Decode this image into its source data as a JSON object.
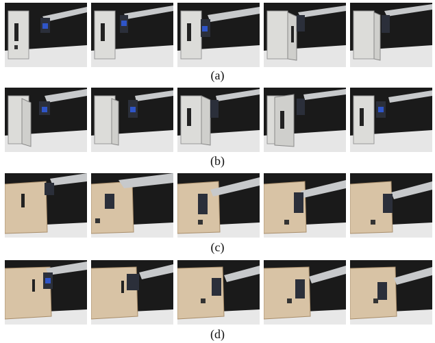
{
  "figure": {
    "rows": [
      {
        "caption": "(a)",
        "scene": "metal-cabinet",
        "frames": 5
      },
      {
        "caption": "(b)",
        "scene": "metal-cabinet",
        "frames": 5
      },
      {
        "caption": "(c)",
        "scene": "wooden-cabinet",
        "frames": 5
      },
      {
        "caption": "(d)",
        "scene": "wooden-cabinet",
        "frames": 5
      }
    ]
  },
  "colors": {
    "metal_cabinet": "#d9d9d6",
    "wooden_cabinet": "#d8c3a5",
    "backdrop": "#151515",
    "floor": "#e8e8e8",
    "robot": "#bfc4c8",
    "gripper_accent": "#2f55c8"
  }
}
